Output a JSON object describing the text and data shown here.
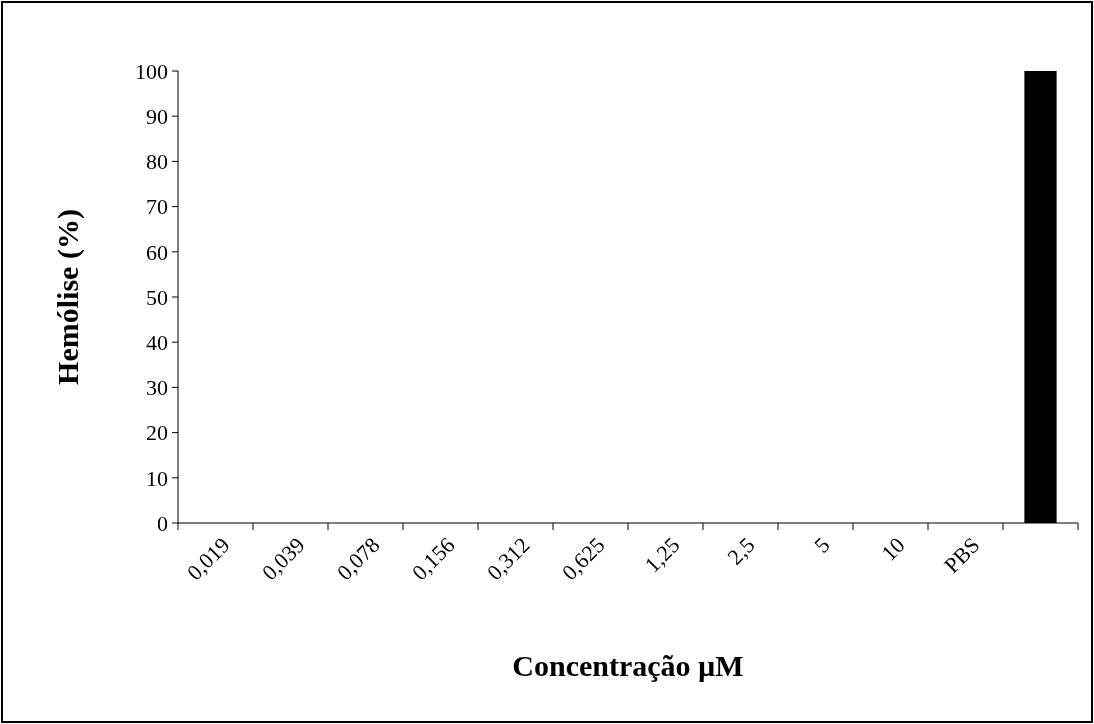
{
  "chart_data": {
    "type": "bar",
    "xlabel": "Concentração µM",
    "ylabel": "Hemólise (%)",
    "categories": [
      "0,019",
      "0,039",
      "0,078",
      "0,156",
      "0,312",
      "0,625",
      "1,25",
      "2,5",
      "5",
      "10",
      "PBS",
      null
    ],
    "values": [
      0,
      0,
      0,
      0,
      0,
      0,
      0,
      0,
      0,
      0,
      0,
      100
    ],
    "color": "#000000",
    "ylim": [
      0,
      100
    ],
    "yticks": [
      0,
      10,
      20,
      30,
      40,
      50,
      60,
      70,
      80,
      90,
      100
    ],
    "grid": false
  }
}
